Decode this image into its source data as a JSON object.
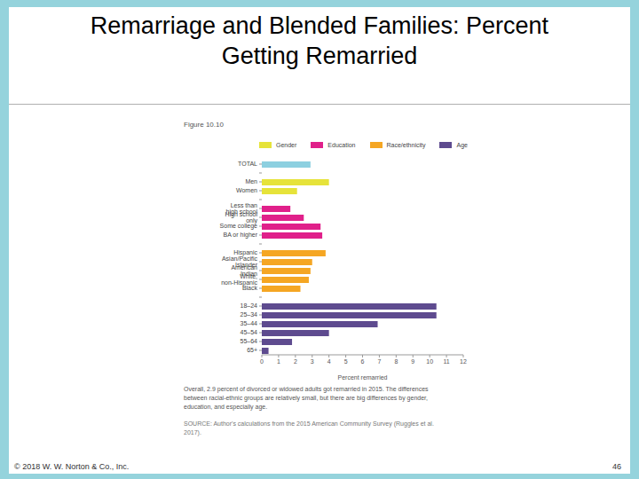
{
  "slide": {
    "title": [
      "Remarriage and Blended Families: Percent",
      "Getting Remarried"
    ],
    "footer": "© 2018 W. W. Norton & Co., Inc.",
    "page": "46"
  },
  "chart_data": {
    "type": "bar",
    "orientation": "horizontal",
    "figure_label": "Figure 10.10",
    "legend_entries": [
      {
        "name": "Gender",
        "color": "#e6e33a"
      },
      {
        "name": "Education",
        "color": "#e0208a"
      },
      {
        "name": "Race/ethnicity",
        "color": "#f5a623"
      },
      {
        "name": "Age",
        "color": "#5e4b8f"
      }
    ],
    "categories": [
      "TOTAL",
      null,
      "Men",
      "Women",
      null,
      "Less than high school",
      "High school only",
      "Some college",
      "BA or higher",
      null,
      "Hispanic",
      "Asian/Pacific Islander",
      "American Indian",
      "White, non-Hispanic",
      "Black",
      null,
      "18–24",
      "25–34",
      "35–44",
      "45–54",
      "55–64",
      "65+"
    ],
    "values": [
      2.9,
      null,
      4.0,
      2.1,
      null,
      1.7,
      2.5,
      3.5,
      3.6,
      null,
      3.8,
      3.0,
      2.9,
      2.8,
      2.3,
      null,
      10.4,
      10.4,
      6.9,
      4.0,
      1.8,
      0.4
    ],
    "colors": [
      "#8dd0e0",
      null,
      "#e6e33a",
      "#e6e33a",
      null,
      "#e0208a",
      "#e0208a",
      "#e0208a",
      "#e0208a",
      null,
      "#f5a623",
      "#f5a623",
      "#f5a623",
      "#f5a623",
      "#f5a623",
      null,
      "#5e4b8f",
      "#5e4b8f",
      "#5e4b8f",
      "#5e4b8f",
      "#5e4b8f",
      "#5e4b8f"
    ],
    "xlabel": "Percent remarried",
    "xlim": [
      0,
      12
    ],
    "xticks": [
      0,
      1,
      2,
      3,
      4,
      5,
      6,
      7,
      8,
      9,
      10,
      11,
      12
    ],
    "grid": false,
    "caption": "Overall, 2.9 percent of divorced or widowed adults got remarried in 2015. The differences between racial-ethnic groups are relatively small, but there are big differences by gender, education, and especially age.",
    "source": "SOURCE: Author's calculations from the 2015 American Community Survey (Ruggles et al. 2017)."
  }
}
